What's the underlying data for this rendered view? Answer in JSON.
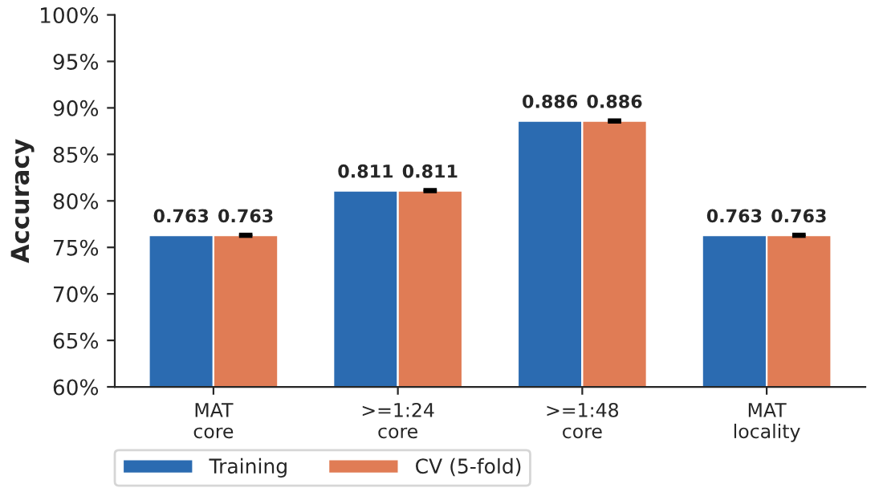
{
  "chart_data": {
    "type": "bar",
    "ylabel": "Accuracy",
    "categories": [
      "MAT\ncore",
      ">=1:24\ncore",
      ">=1:48\ncore",
      "MAT\nlocality"
    ],
    "series": [
      {
        "name": "Training",
        "color": "#2b6bb1",
        "values": [
          0.763,
          0.811,
          0.886,
          0.763
        ]
      },
      {
        "name": "CV (5-fold)",
        "color": "#e07c55",
        "values": [
          0.763,
          0.811,
          0.886,
          0.763
        ],
        "errors": [
          0.001,
          0.001,
          0.001,
          0.001
        ]
      }
    ],
    "ylim": [
      0.6,
      1.0
    ],
    "yticks": [
      {
        "value": 0.6,
        "label": "60%"
      },
      {
        "value": 0.65,
        "label": "65%"
      },
      {
        "value": 0.7,
        "label": "70%"
      },
      {
        "value": 0.75,
        "label": "75%"
      },
      {
        "value": 0.8,
        "label": "80%"
      },
      {
        "value": 0.85,
        "label": "85%"
      },
      {
        "value": 0.9,
        "label": "90%"
      },
      {
        "value": 0.95,
        "label": "95%"
      },
      {
        "value": 1.0,
        "label": "100%"
      }
    ],
    "data_labels": true,
    "grid": false,
    "legend": "bottom left"
  }
}
